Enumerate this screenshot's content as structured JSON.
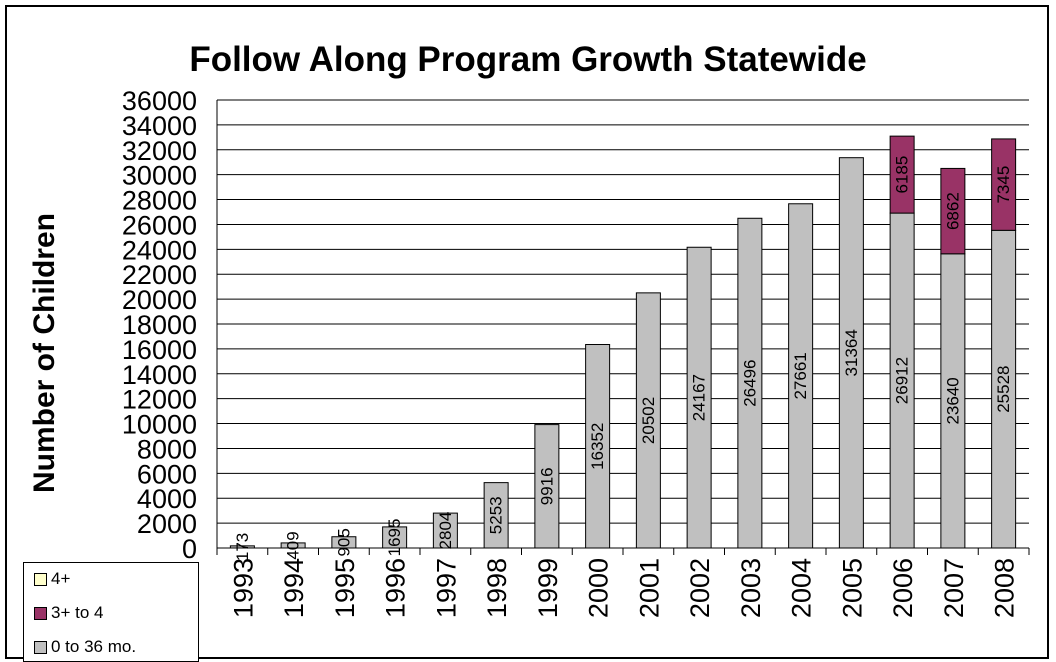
{
  "chart_data": {
    "type": "bar",
    "stacked": true,
    "title": "Follow Along Program Growth Statewide",
    "ylabel": "Number of Children",
    "xlabel": "",
    "ylim": [
      0,
      36000
    ],
    "yticks": [
      0,
      2000,
      4000,
      6000,
      8000,
      10000,
      12000,
      14000,
      16000,
      18000,
      20000,
      22000,
      24000,
      26000,
      28000,
      30000,
      32000,
      34000,
      36000
    ],
    "grid": true,
    "legend_position": "bottom-left",
    "categories": [
      "1993",
      "1994",
      "1995",
      "1996",
      "1997",
      "1998",
      "1999",
      "2000",
      "2001",
      "2002",
      "2003",
      "2004",
      "2005",
      "2006",
      "2007",
      "2008"
    ],
    "series": [
      {
        "name": "0 to 36 mo.",
        "color": "#c0c0c0",
        "values": [
          173,
          409,
          905,
          1695,
          2804,
          5253,
          9916,
          16352,
          20502,
          24167,
          26496,
          27661,
          31364,
          26912,
          23640,
          25528
        ],
        "labels": [
          "173",
          "409",
          "905",
          "1695",
          "2804",
          "5253",
          "9916",
          "16352",
          "20502",
          "24167",
          "26496",
          "27661",
          "31364",
          "26912",
          "23640",
          "25528"
        ]
      },
      {
        "name": "3+ to 4",
        "color": "#993366",
        "values": [
          0,
          0,
          0,
          0,
          0,
          0,
          0,
          0,
          0,
          0,
          0,
          0,
          0,
          6185,
          6862,
          7345
        ],
        "labels": [
          "",
          "",
          "",
          "",
          "",
          "",
          "",
          "",
          "",
          "",
          "",
          "",
          "",
          "6185",
          "6862",
          "7345"
        ]
      },
      {
        "name": "4+",
        "color": "#ffffcc",
        "values": [
          0,
          0,
          0,
          0,
          0,
          0,
          0,
          0,
          0,
          0,
          0,
          0,
          0,
          0,
          0,
          0
        ],
        "labels": [
          "",
          "",
          "",
          "",
          "",
          "",
          "",
          "",
          "",
          "",
          "",
          "",
          "",
          "",
          "",
          ""
        ]
      }
    ]
  },
  "legend": {
    "items": [
      {
        "label": "4+",
        "color": "#ffffcc"
      },
      {
        "label": "3+ to 4",
        "color": "#993366"
      },
      {
        "label": "0 to 36 mo.",
        "color": "#c0c0c0"
      }
    ]
  }
}
